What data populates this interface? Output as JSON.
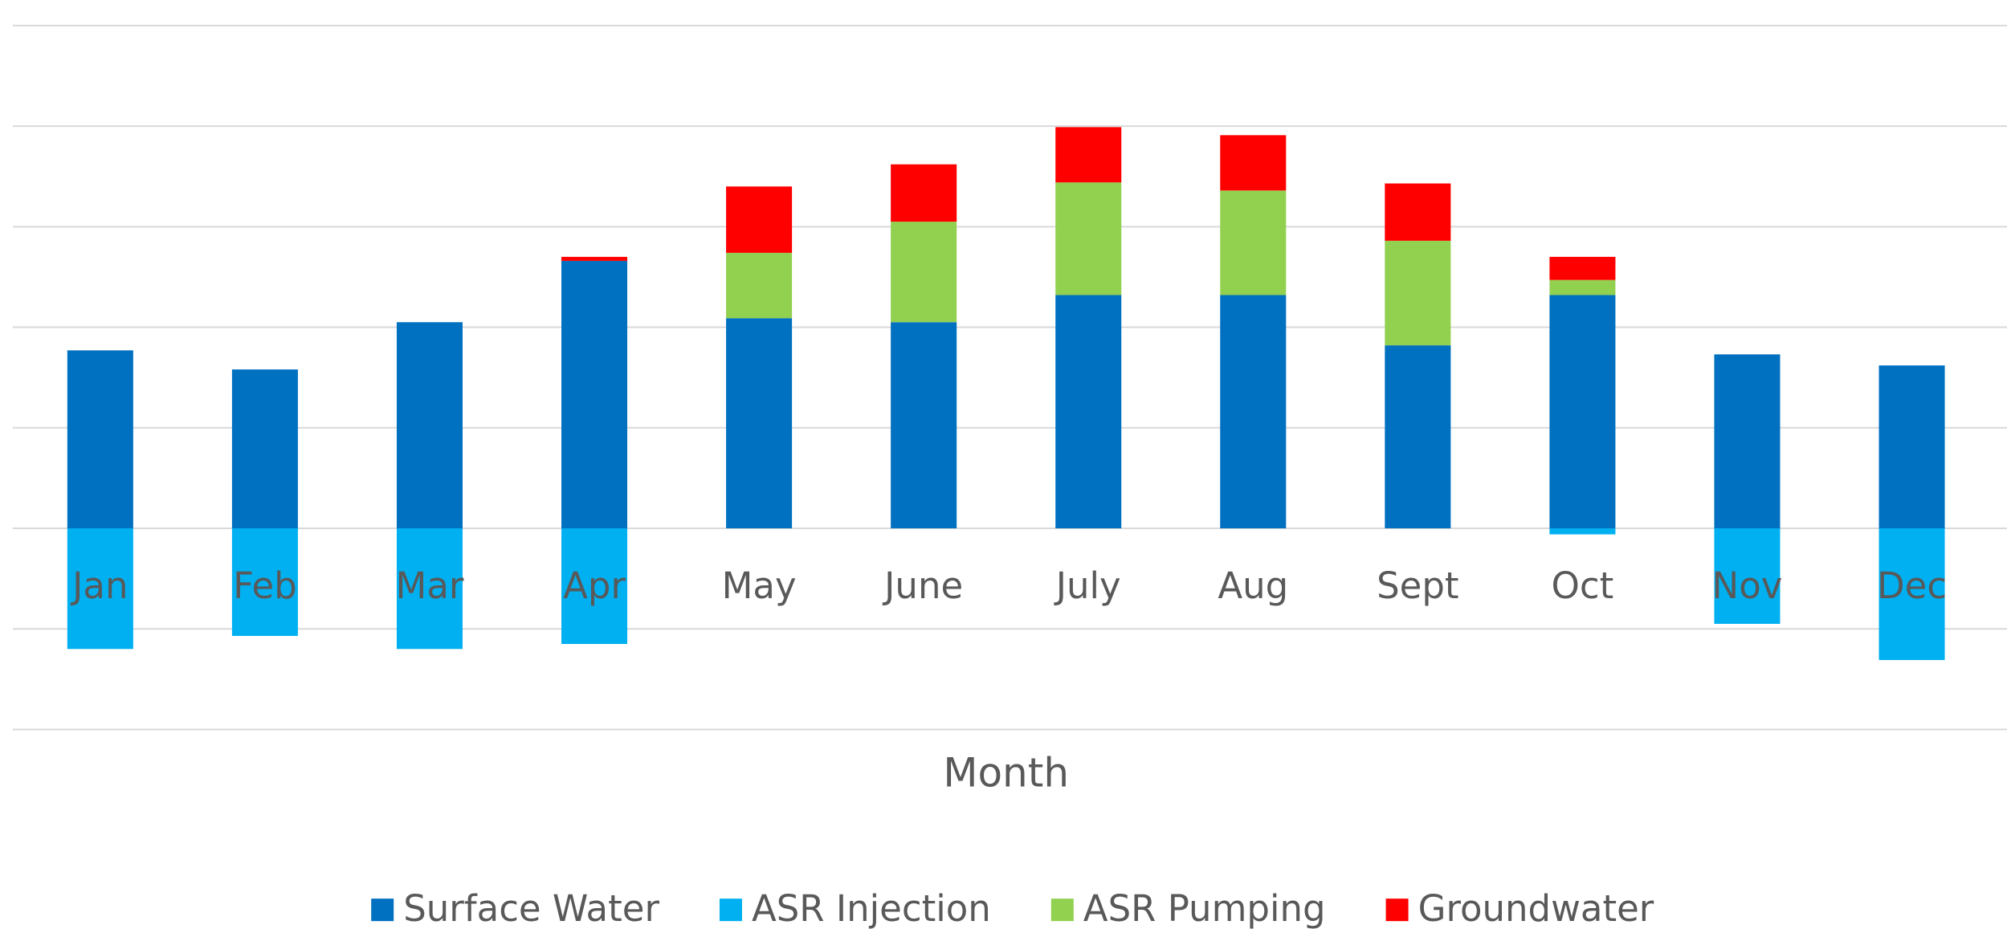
{
  "chart_data": {
    "type": "stacked_bar",
    "x_label": "Month",
    "categories": [
      "Jan",
      "Feb",
      "Mar",
      "Apr",
      "May",
      "June",
      "July",
      "Aug",
      "Sept",
      "Oct",
      "Nov",
      "Dec"
    ],
    "series": [
      {
        "name": "Surface Water",
        "color": "#0070c0",
        "values": [
          1.77,
          1.58,
          2.05,
          2.66,
          2.09,
          2.05,
          2.32,
          2.32,
          1.82,
          2.32,
          1.73,
          1.62
        ]
      },
      {
        "name": "ASR Injection",
        "color": "#00b0f0",
        "values": [
          -1.2,
          -1.07,
          -1.2,
          -1.15,
          0,
          0,
          0,
          0,
          0,
          -0.06,
          -0.95,
          -1.31
        ]
      },
      {
        "name": "ASR Pumping",
        "color": "#92d050",
        "values": [
          0,
          0,
          0,
          0,
          0.65,
          1.0,
          1.12,
          1.04,
          1.04,
          0.15,
          0,
          0
        ]
      },
      {
        "name": "Groundwater",
        "color": "#ff0000",
        "values": [
          0,
          0,
          0,
          0.04,
          0.66,
          0.57,
          0.55,
          0.55,
          0.57,
          0.23,
          0,
          0
        ]
      }
    ],
    "ylim": [
      -2,
      5
    ],
    "yticks": [
      -2,
      -1,
      0,
      1,
      2,
      3,
      4,
      5
    ],
    "grid": true
  }
}
